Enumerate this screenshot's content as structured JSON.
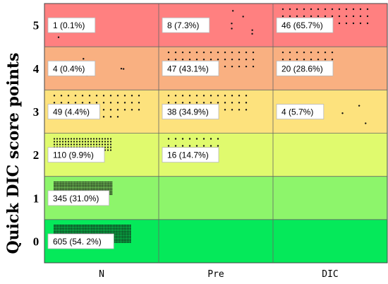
{
  "chart_data": {
    "type": "table",
    "ylabel": "Quick DIC score points",
    "categories": [
      "N",
      "Pre",
      "DIC"
    ],
    "score_levels": [
      "0",
      "1",
      "2",
      "3",
      "4",
      "5"
    ],
    "row_colors": {
      "5": "#ff8080",
      "4": "#f9b081",
      "3": "#fde27d",
      "2": "#e0fa6e",
      "1": "#8df56b",
      "0": "#05e95a"
    },
    "cells": [
      {
        "group": "N",
        "score": "5",
        "count": 1,
        "label": "1 (0.1%)"
      },
      {
        "group": "N",
        "score": "4",
        "count": 4,
        "label": "4 (0.4%)"
      },
      {
        "group": "N",
        "score": "3",
        "count": 49,
        "label": "49 (4.4%)"
      },
      {
        "group": "N",
        "score": "2",
        "count": 110,
        "label": "110 (9.9%)"
      },
      {
        "group": "N",
        "score": "1",
        "count": 345,
        "label": "345 (31.0%)"
      },
      {
        "group": "N",
        "score": "0",
        "count": 605,
        "label": "605 (54. 2%)"
      },
      {
        "group": "Pre",
        "score": "5",
        "count": 8,
        "label": "8 (7.3%)"
      },
      {
        "group": "Pre",
        "score": "4",
        "count": 47,
        "label": "47 (43.1%)"
      },
      {
        "group": "Pre",
        "score": "3",
        "count": 38,
        "label": "38 (34.9%)"
      },
      {
        "group": "Pre",
        "score": "2",
        "count": 16,
        "label": "16 (14.7%)"
      },
      {
        "group": "DIC",
        "score": "5",
        "count": 46,
        "label": "46 (65.7%)"
      },
      {
        "group": "DIC",
        "score": "4",
        "count": 20,
        "label": "20 (28.6%)"
      },
      {
        "group": "DIC",
        "score": "3",
        "count": 4,
        "label": "4 (5.7%)"
      }
    ]
  }
}
